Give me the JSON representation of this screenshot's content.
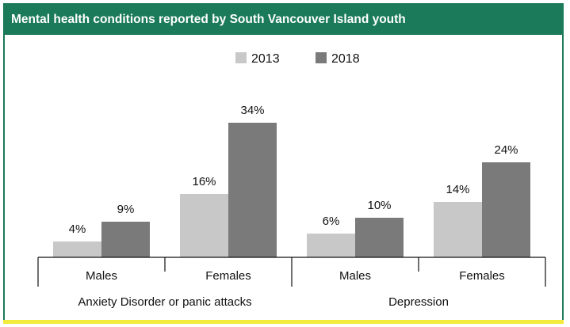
{
  "title": "Mental health conditions reported by South Vancouver Island youth",
  "colors": {
    "frame": "#1a7a5a",
    "series_2013": "#c8c8c8",
    "series_2018": "#7a7a7a",
    "bottom_rule": "#f2ea3c"
  },
  "chart_data": {
    "type": "bar",
    "title": "Mental health conditions reported by South Vancouver Island youth",
    "categories": [
      "Males",
      "Females",
      "Males",
      "Females"
    ],
    "groups": [
      {
        "label": "Anxiety Disorder or panic attacks",
        "categories": [
          "Males",
          "Females"
        ]
      },
      {
        "label": "Depression",
        "categories": [
          "Males",
          "Females"
        ]
      }
    ],
    "series": [
      {
        "name": "2013",
        "values": [
          4,
          16,
          6,
          14
        ],
        "labels": [
          "4%",
          "16%",
          "6%",
          "14%"
        ]
      },
      {
        "name": "2018",
        "values": [
          9,
          34,
          10,
          24
        ],
        "labels": [
          "9%",
          "34%",
          "10%",
          "24%"
        ]
      }
    ],
    "unit": "%",
    "ylim": [
      0,
      40
    ],
    "legend_position": "top",
    "grid": false
  }
}
